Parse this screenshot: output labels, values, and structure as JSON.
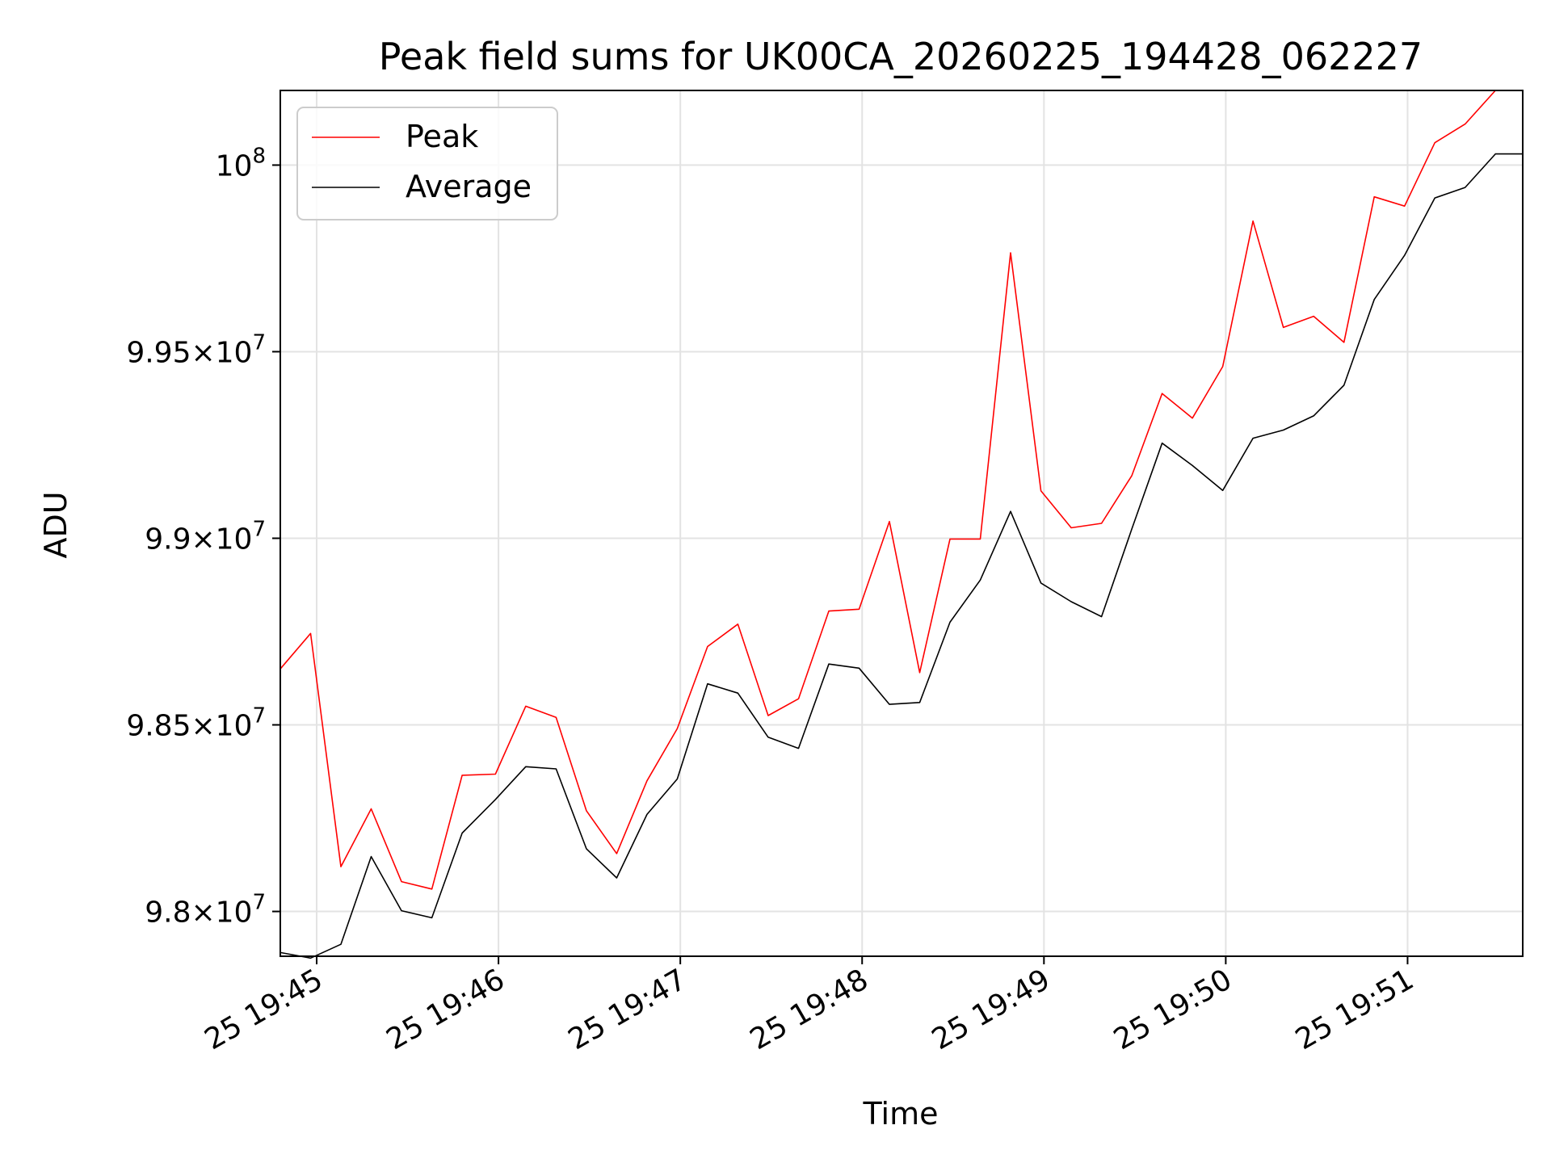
{
  "chart_data": {
    "type": "line",
    "title": "Peak field sums for UK00CA_20260225_194428_062227",
    "xlabel": "Time",
    "ylabel": "ADU",
    "x_range": [
      "19:44:48",
      "19:51:38"
    ],
    "ylim": [
      97880000,
      100200000
    ],
    "grid": true,
    "legend_position": "upper-left",
    "x": [
      "19:44:48",
      "19:44:58",
      "19:45:08",
      "19:45:18",
      "19:45:28",
      "19:45:38",
      "19:45:48",
      "19:45:59",
      "19:46:09",
      "19:46:19",
      "19:46:29",
      "19:46:39",
      "19:46:49",
      "19:46:59",
      "19:47:09",
      "19:47:19",
      "19:47:29",
      "19:47:39",
      "19:47:49",
      "19:47:59",
      "19:48:09",
      "19:48:19",
      "19:48:29",
      "19:48:39",
      "19:48:49",
      "19:48:59",
      "19:49:09",
      "19:49:19",
      "19:49:29",
      "19:49:39",
      "19:49:49",
      "19:49:59",
      "19:50:09",
      "19:50:19",
      "19:50:29",
      "19:50:39",
      "19:50:49",
      "19:50:59",
      "19:51:09",
      "19:51:19",
      "19:51:29",
      "19:51:38"
    ],
    "series": [
      {
        "name": "Peak",
        "color": "#ff0000",
        "values": [
          98650000,
          98745000,
          98120000,
          98275000,
          98080000,
          98060000,
          98365000,
          98368000,
          98550000,
          98520000,
          98270000,
          98155000,
          98350000,
          98490000,
          98710000,
          98770000,
          98525000,
          98570000,
          98805000,
          98810000,
          99045000,
          98640000,
          98998000,
          98998000,
          99765000,
          99127000,
          99028000,
          99040000,
          99168000,
          99388000,
          99322000,
          99460000,
          99850000,
          99565000,
          99595000,
          99525000,
          99915000,
          99890000,
          100060000,
          100110000,
          100200000,
          100200000
        ]
      },
      {
        "name": "Average",
        "color": "#000000",
        "values": [
          97890000,
          97875000,
          97912000,
          98147000,
          98002000,
          97983000,
          98210000,
          98300000,
          98388000,
          98382000,
          98168000,
          98090000,
          98260000,
          98355000,
          98610000,
          98585000,
          98467000,
          98437000,
          98663000,
          98652000,
          98555000,
          98560000,
          98775000,
          98888000,
          99072000,
          98880000,
          98830000,
          98790000,
          99025000,
          99255000,
          99195000,
          99128000,
          99268000,
          99290000,
          99328000,
          99410000,
          99640000,
          99758000,
          99912000,
          99940000,
          100030000,
          100030000
        ]
      }
    ],
    "y_ticks": [
      {
        "value": 98000000,
        "mantissa": "9.8",
        "exponent": "7"
      },
      {
        "value": 98500000,
        "mantissa": "9.85",
        "exponent": "7"
      },
      {
        "value": 99000000,
        "mantissa": "9.9",
        "exponent": "7"
      },
      {
        "value": 99500000,
        "mantissa": "9.95",
        "exponent": "7"
      },
      {
        "value": 100000000,
        "mantissa": "",
        "exponent": "8"
      }
    ],
    "x_ticks": [
      {
        "time": "19:45:00",
        "label": "25 19:45"
      },
      {
        "time": "19:46:00",
        "label": "25 19:46"
      },
      {
        "time": "19:47:00",
        "label": "25 19:47"
      },
      {
        "time": "19:48:00",
        "label": "25 19:48"
      },
      {
        "time": "19:49:00",
        "label": "25 19:49"
      },
      {
        "time": "19:50:00",
        "label": "25 19:50"
      },
      {
        "time": "19:51:00",
        "label": "25 19:51"
      }
    ]
  }
}
